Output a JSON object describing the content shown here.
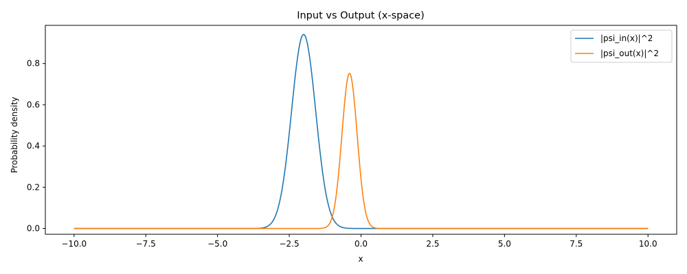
{
  "chart_data": {
    "type": "line",
    "title": "Input vs Output (x-space)",
    "xlabel": "x",
    "ylabel": "Probability density",
    "xlim": [
      -11.0,
      11.0
    ],
    "ylim": [
      -0.028,
      0.985
    ],
    "xticks": [
      -10.0,
      -7.5,
      -5.0,
      -2.5,
      0.0,
      2.5,
      5.0,
      7.5,
      10.0
    ],
    "xtick_labels": [
      "−10.0",
      "−7.5",
      "−5.0",
      "−2.5",
      "0.0",
      "2.5",
      "5.0",
      "7.5",
      "10.0"
    ],
    "yticks": [
      0.0,
      0.2,
      0.4,
      0.6,
      0.8
    ],
    "ytick_labels": [
      "0.0",
      "0.2",
      "0.4",
      "0.6",
      "0.8"
    ],
    "grid": false,
    "legend_position": "top-right",
    "x_range": [
      -10.0,
      10.0
    ],
    "series": [
      {
        "name": "|psi_in(x)|^2",
        "color": "#1f77b4",
        "peak": 0.941,
        "center": -2.0,
        "sigma": 0.42
      },
      {
        "name": "|psi_out(x)|^2",
        "color": "#ff7f0e",
        "peak": 0.752,
        "center": -0.4,
        "sigma": 0.265
      }
    ]
  }
}
